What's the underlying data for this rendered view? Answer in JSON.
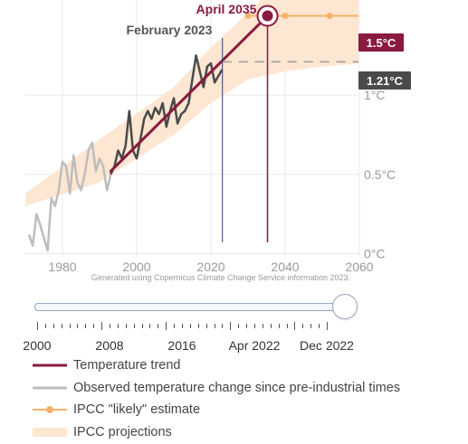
{
  "colors": {
    "trend": "#8b1a3f",
    "observed_early": "#bdbdbd",
    "observed_recent": "#4a4a4a",
    "ipcc_estimate": "#f5b26b",
    "ipcc_projection": "#fde6d2",
    "threshold_badge": "#8b1a3f",
    "current_badge": "#4a4a4a",
    "feb_line": "#2b3f73"
  },
  "annotations": {
    "april_2035": "April 2035",
    "february_2023": "February 2023",
    "badge_threshold": "1.5°C",
    "badge_current": "1.21°C",
    "credit": "Generated using Copernicus Climate Change Service information 2023."
  },
  "slider": {
    "ticks": [
      "2000",
      "2008",
      "2016",
      "Apr 2022",
      "Dec 2022"
    ]
  },
  "legend": [
    {
      "key": "trend",
      "label": "Temperature trend"
    },
    {
      "key": "observed",
      "label": "Observed temperature change since pre-industrial times"
    },
    {
      "key": "estimate",
      "label": "IPCC \"likely\" estimate"
    },
    {
      "key": "projection",
      "label": "IPCC projections"
    }
  ],
  "chart_data": {
    "type": "line",
    "xlim": [
      1970,
      2060
    ],
    "ylim": [
      -0.02,
      1.6
    ],
    "x_ticks": [
      {
        "value": 1980,
        "label": "1980"
      },
      {
        "value": 2000,
        "label": "2000"
      },
      {
        "value": 2020,
        "label": "2020"
      },
      {
        "value": 2040,
        "label": "2040"
      },
      {
        "value": 2060,
        "label": "2060"
      }
    ],
    "y_ticks": [
      {
        "value": 0,
        "label": "0°C"
      },
      {
        "value": 0.5,
        "label": "0.5°C"
      },
      {
        "value": 1.0,
        "label": "1°C"
      }
    ],
    "observed": {
      "x": [
        1971,
        1972,
        1973,
        1974,
        1975,
        1976,
        1977,
        1978,
        1979,
        1980,
        1981,
        1982,
        1983,
        1984,
        1985,
        1986,
        1987,
        1988,
        1989,
        1990,
        1991,
        1992,
        1993,
        1994,
        1995,
        1996,
        1997,
        1998,
        1999,
        2000,
        2001,
        2002,
        2003,
        2004,
        2005,
        2006,
        2007,
        2008,
        2009,
        2010,
        2011,
        2012,
        2013,
        2014,
        2015,
        2016,
        2017,
        2018,
        2019,
        2020,
        2021,
        2022,
        2023
      ],
      "y": [
        0.12,
        0.05,
        0.25,
        0.18,
        0.1,
        0.02,
        0.35,
        0.3,
        0.4,
        0.58,
        0.55,
        0.38,
        0.62,
        0.45,
        0.4,
        0.5,
        0.65,
        0.7,
        0.52,
        0.6,
        0.55,
        0.4,
        0.5,
        0.55,
        0.65,
        0.6,
        0.68,
        0.9,
        0.65,
        0.6,
        0.72,
        0.85,
        0.9,
        0.85,
        0.92,
        0.88,
        0.95,
        0.8,
        0.9,
        0.98,
        0.82,
        0.88,
        0.9,
        0.95,
        1.1,
        1.25,
        1.15,
        1.05,
        1.18,
        1.2,
        1.08,
        1.12,
        1.16
      ]
    },
    "observed_split_year": 1993,
    "trend": {
      "x": [
        1993,
        2035.25
      ],
      "y": [
        0.52,
        1.5
      ]
    },
    "current_level": 1.21,
    "threshold": 1.5,
    "february_2023_x": 2023.1,
    "april_2035_x": 2035.25,
    "ipcc_estimate": {
      "x": [
        2030,
        2035.25,
        2040,
        2052
      ],
      "y": [
        1.5,
        1.5,
        1.5,
        1.5
      ]
    },
    "ipcc_projection": {
      "x": [
        1970,
        1990,
        2010,
        2020,
        2030,
        2040,
        2050,
        2060
      ],
      "upper": [
        0.38,
        0.72,
        1.05,
        1.3,
        1.52,
        1.75,
        1.9,
        2.0
      ],
      "lower": [
        0.3,
        0.45,
        0.75,
        0.95,
        1.1,
        1.15,
        1.18,
        1.2
      ]
    }
  }
}
